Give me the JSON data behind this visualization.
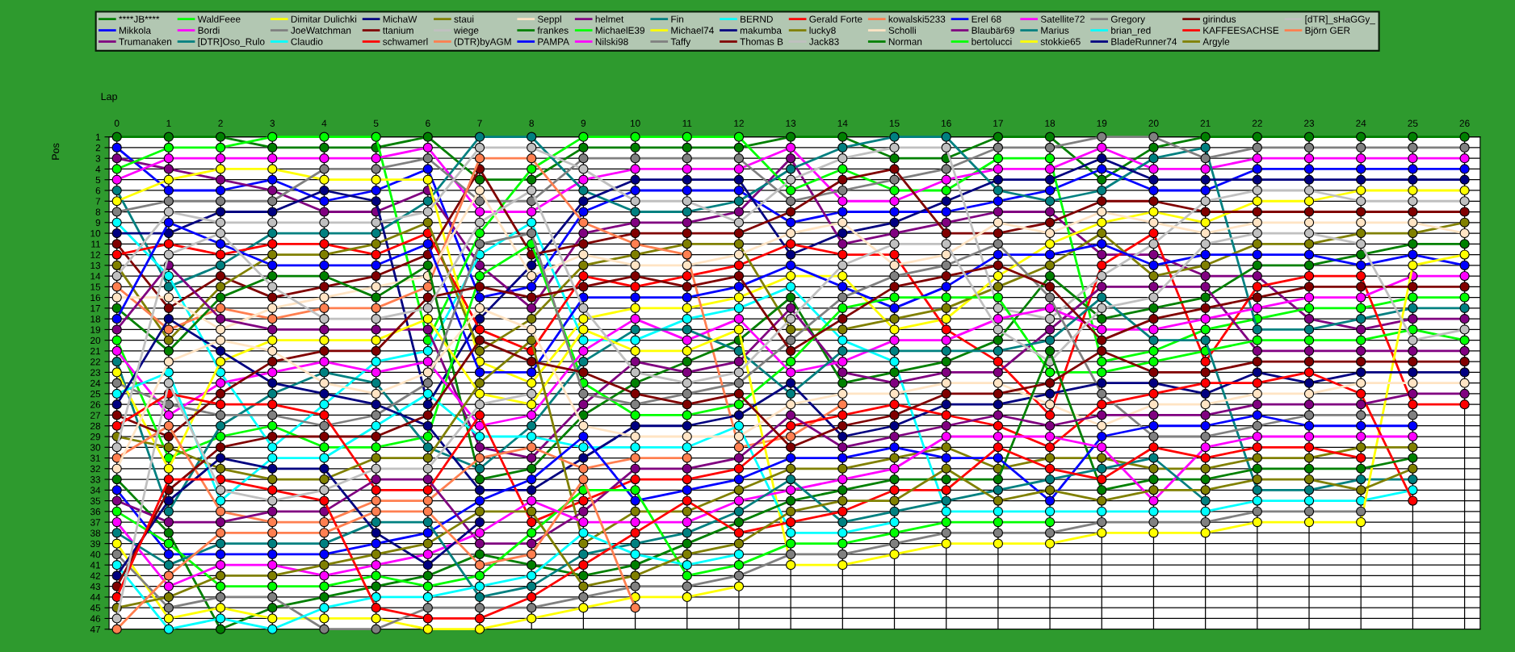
{
  "chart_data": {
    "type": "line",
    "xlabel": "Lap",
    "ylabel": "Pos",
    "categories": [
      "0",
      "1",
      "2",
      "3",
      "4",
      "5",
      "6",
      "7",
      "8",
      "9",
      "10",
      "11",
      "12",
      "13",
      "14",
      "15",
      "16",
      "17",
      "18",
      "19",
      "20",
      "21",
      "22",
      "23",
      "24",
      "25",
      "26"
    ],
    "ylim": [
      47,
      1
    ],
    "yticks": [
      1,
      2,
      3,
      4,
      5,
      6,
      7,
      8,
      9,
      10,
      11,
      12,
      13,
      14,
      15,
      16,
      17,
      18,
      19,
      20,
      21,
      22,
      23,
      24,
      25,
      26,
      27,
      28,
      29,
      30,
      31,
      32,
      33,
      34,
      35,
      36,
      37,
      38,
      39,
      40,
      41,
      42,
      43,
      44,
      45,
      46,
      47
    ],
    "grid": true,
    "legend": "top",
    "marker": "circle",
    "line_style": "solid",
    "series": [
      {
        "name": "****JB****",
        "color": "#008000",
        "values": [
          1,
          1,
          1,
          2,
          2,
          2,
          1,
          5,
          5,
          2,
          2,
          2,
          2,
          1,
          1,
          3,
          3,
          1,
          1,
          5,
          2,
          1,
          1,
          1,
          1,
          1,
          1
        ]
      },
      {
        "name": "Mikkola",
        "color": "#0000ff",
        "values": [
          2,
          6,
          6,
          5,
          7,
          6,
          4,
          16,
          15,
          8,
          6,
          6,
          6,
          9,
          8,
          8,
          8,
          7,
          6,
          4,
          6,
          6,
          4,
          4,
          4,
          4,
          4
        ]
      },
      {
        "name": "Trumanaken",
        "color": "#800080",
        "values": [
          3,
          4,
          5,
          6,
          8,
          8,
          6,
          13,
          17,
          10,
          9,
          9,
          8,
          3,
          11,
          10,
          9,
          8,
          8,
          12,
          12,
          14,
          14,
          18,
          19,
          18,
          18
        ]
      },
      {
        "name": "WaldFeee",
        "color": "#00ff00",
        "values": [
          4,
          2,
          2,
          1,
          1,
          1,
          20,
          10,
          4,
          1,
          1,
          1,
          1,
          6,
          4,
          6,
          6,
          3,
          3,
          22,
          21,
          19,
          18,
          17,
          17,
          16,
          16
        ]
      },
      {
        "name": "Bordi",
        "color": "#ff00ff",
        "values": [
          5,
          3,
          3,
          3,
          3,
          3,
          2,
          8,
          8,
          5,
          4,
          4,
          4,
          2,
          7,
          7,
          5,
          4,
          4,
          2,
          4,
          4,
          3,
          3,
          3,
          3,
          3
        ]
      },
      {
        "name": "[DTR]Oso_Rulo",
        "color": "#008080",
        "values": [
          6,
          15,
          13,
          10,
          10,
          10,
          7,
          1,
          1,
          6,
          8,
          8,
          7,
          4,
          2,
          1,
          1,
          6,
          7,
          6,
          3,
          2,
          19,
          19,
          18,
          17,
          17
        ]
      },
      {
        "name": "Dimitar Dulichki",
        "color": "#ffff00",
        "values": [
          7,
          5,
          4,
          4,
          5,
          5,
          5,
          22,
          24,
          18,
          17,
          17,
          16,
          14,
          14,
          19,
          18,
          14,
          11,
          9,
          8,
          9,
          7,
          7,
          6,
          6,
          6
        ]
      },
      {
        "name": "JoeWatchman",
        "color": "#808080",
        "values": [
          8,
          7,
          7,
          7,
          4,
          4,
          3,
          7,
          7,
          3,
          3,
          3,
          3,
          7,
          6,
          5,
          4,
          2,
          2,
          1,
          1,
          3,
          2,
          2,
          2,
          2,
          2
        ]
      },
      {
        "name": "Claudio",
        "color": "#00ffff",
        "values": [
          9,
          14,
          23,
          30,
          26,
          22,
          21,
          12,
          9,
          20,
          20,
          18,
          17,
          15,
          20,
          22,
          36,
          36,
          36,
          36,
          36,
          36,
          35,
          35,
          35,
          34,
          null
        ]
      },
      {
        "name": "MichaW",
        "color": "#000080",
        "values": [
          10,
          10,
          8,
          8,
          6,
          7,
          26,
          18,
          13,
          7,
          5,
          5,
          5,
          12,
          10,
          9,
          7,
          5,
          5,
          3,
          5,
          5,
          5,
          5,
          5,
          5,
          5
        ]
      },
      {
        "name": "ttanium",
        "color": "#800000",
        "values": [
          11,
          17,
          14,
          16,
          15,
          14,
          12,
          4,
          12,
          11,
          10,
          10,
          10,
          8,
          5,
          4,
          10,
          10,
          9,
          7,
          7,
          8,
          8,
          8,
          8,
          8,
          8
        ]
      },
      {
        "name": "schwamerl",
        "color": "#ff0000",
        "values": [
          12,
          11,
          12,
          11,
          11,
          12,
          10,
          19,
          21,
          14,
          15,
          14,
          13,
          11,
          12,
          12,
          19,
          22,
          27,
          13,
          10,
          22,
          15,
          14,
          14,
          26,
          26
        ]
      },
      {
        "name": "staui",
        "color": "#808000",
        "values": [
          13,
          20,
          15,
          12,
          12,
          11,
          9,
          21,
          18,
          13,
          12,
          11,
          11,
          19,
          19,
          18,
          17,
          15,
          13,
          10,
          14,
          13,
          11,
          11,
          10,
          10,
          9
        ]
      },
      {
        "name": "wiege",
        "color": "#c0c0c0",
        "values": [
          14,
          8,
          9,
          9,
          9,
          9,
          8,
          2,
          2,
          4,
          7,
          7,
          9,
          5,
          3,
          2,
          2,
          17,
          18,
          14,
          11,
          7,
          6,
          6,
          7,
          7,
          7
        ]
      },
      {
        "name": "(DTR)byAGM",
        "color": "#ff7f50",
        "values": [
          15,
          19,
          17,
          18,
          17,
          17,
          15,
          3,
          3,
          9,
          11,
          12,
          30,
          29,
          26,
          null,
          null,
          null,
          null,
          null,
          null,
          null,
          null,
          null,
          null,
          null,
          null
        ]
      },
      {
        "name": "Seppl",
        "color": "#ffe4c4",
        "values": [
          16,
          16,
          19,
          17,
          16,
          15,
          14,
          6,
          14,
          12,
          13,
          13,
          12,
          10,
          9,
          13,
          12,
          9,
          10,
          8,
          9,
          10,
          9,
          9,
          9,
          9,
          10
        ]
      },
      {
        "name": "frankes",
        "color": "#008000",
        "values": [
          17,
          21,
          16,
          14,
          14,
          16,
          13,
          33,
          32,
          27,
          24,
          22,
          20,
          16,
          24,
          23,
          22,
          20,
          14,
          18,
          17,
          16,
          13,
          13,
          12,
          11,
          11
        ]
      },
      {
        "name": "PAMPA",
        "color": "#0000ff",
        "values": [
          18,
          9,
          11,
          13,
          13,
          13,
          11,
          23,
          23,
          16,
          16,
          16,
          15,
          13,
          15,
          17,
          15,
          12,
          12,
          11,
          13,
          12,
          12,
          12,
          13,
          12,
          13
        ]
      },
      {
        "name": "helmet",
        "color": "#800080",
        "values": [
          19,
          13,
          18,
          19,
          19,
          19,
          19,
          30,
          31,
          26,
          22,
          23,
          22,
          17,
          23,
          24,
          23,
          23,
          19,
          15,
          15,
          15,
          21,
          21,
          21,
          21,
          21
        ]
      },
      {
        "name": "MichaelE39",
        "color": "#00ff00",
        "values": [
          20,
          31,
          29,
          28,
          30,
          30,
          29,
          14,
          11,
          24,
          27,
          27,
          26,
          22,
          17,
          16,
          16,
          16,
          23,
          23,
          22,
          21,
          20,
          20,
          20,
          19,
          20
        ]
      },
      {
        "name": "Nilski98",
        "color": "#ff00ff",
        "values": [
          21,
          27,
          24,
          23,
          22,
          23,
          22,
          28,
          27,
          21,
          18,
          20,
          18,
          23,
          22,
          20,
          20,
          18,
          17,
          19,
          19,
          18,
          17,
          16,
          16,
          14,
          14
        ]
      },
      {
        "name": "Fin",
        "color": "#008080",
        "values": [
          22,
          36,
          28,
          25,
          23,
          24,
          30,
          32,
          28,
          22,
          19,
          19,
          21,
          25,
          21,
          21,
          21,
          21,
          20,
          16,
          20,
          20,
          34,
          34,
          33,
          33,
          null
        ]
      },
      {
        "name": "Michael74",
        "color": "#ffff00",
        "values": [
          23,
          32,
          22,
          20,
          20,
          20,
          18,
          25,
          26,
          19,
          21,
          21,
          19,
          41,
          41,
          40,
          39,
          39,
          39,
          38,
          38,
          38,
          37,
          37,
          37,
          13,
          12
        ]
      },
      {
        "name": "Taffy",
        "color": "#808080",
        "values": [
          24,
          26,
          27,
          27,
          28,
          27,
          24,
          11,
          10,
          25,
          26,
          25,
          24,
          20,
          16,
          14,
          13,
          11,
          16,
          25,
          29,
          29,
          28,
          27,
          27,
          27,
          null
        ]
      },
      {
        "name": "BERND",
        "color": "#00ffff",
        "values": [
          25,
          23,
          35,
          31,
          31,
          28,
          25,
          29,
          29,
          30,
          30,
          30,
          28,
          38,
          38,
          37,
          null,
          null,
          null,
          null,
          null,
          null,
          null,
          null,
          null,
          null,
          null
        ]
      },
      {
        "name": "makumba",
        "color": "#000080",
        "values": [
          26,
          18,
          21,
          24,
          25,
          26,
          28,
          34,
          34,
          31,
          28,
          28,
          27,
          24,
          29,
          28,
          26,
          26,
          25,
          24,
          24,
          25,
          23,
          24,
          23,
          23,
          23
        ]
      },
      {
        "name": "Thomas B",
        "color": "#800000",
        "values": [
          27,
          29,
          25,
          22,
          21,
          21,
          16,
          15,
          16,
          15,
          14,
          15,
          14,
          21,
          18,
          15,
          14,
          13,
          15,
          20,
          18,
          17,
          16,
          15,
          15,
          15,
          15
        ]
      },
      {
        "name": "Gerald Forte",
        "color": "#ff0000",
        "values": [
          28,
          25,
          26,
          26,
          27,
          34,
          34,
          27,
          37,
          35,
          33,
          33,
          32,
          28,
          27,
          26,
          27,
          28,
          30,
          26,
          25,
          24,
          24,
          23,
          25,
          35,
          null
        ]
      },
      {
        "name": "lucky8",
        "color": "#808000",
        "values": [
          29,
          30,
          32,
          33,
          33,
          31,
          31,
          24,
          20,
          39,
          36,
          36,
          34,
          32,
          32,
          31,
          30,
          32,
          31,
          31,
          32,
          32,
          31,
          31,
          30,
          30,
          null
        ]
      },
      {
        "name": "Jack83",
        "color": "#c0c0c0",
        "values": [
          30,
          12,
          10,
          15,
          18,
          18,
          17,
          9,
          6,
          17,
          23,
          24,
          23,
          18,
          13,
          11,
          11,
          19,
          22,
          17,
          16,
          11,
          10,
          10,
          11,
          20,
          19
        ]
      },
      {
        "name": "kowalski5233",
        "color": "#ff7f50",
        "values": [
          31,
          28,
          36,
          37,
          37,
          35,
          35,
          31,
          30,
          32,
          31,
          31,
          null,
          null,
          null,
          null,
          null,
          null,
          null,
          null,
          null,
          null,
          null,
          null,
          null,
          null,
          null
        ]
      },
      {
        "name": "Scholli",
        "color": "#ffe4c4",
        "values": [
          32,
          22,
          20,
          21,
          24,
          25,
          23,
          17,
          19,
          28,
          29,
          29,
          29,
          26,
          25,
          25,
          24,
          24,
          26,
          28,
          26,
          26,
          25,
          25,
          24,
          24,
          24
        ]
      },
      {
        "name": "Norman",
        "color": "#008000",
        "values": [
          33,
          38,
          47,
          45,
          44,
          43,
          42,
          40,
          41,
          42,
          41,
          39,
          37,
          35,
          34,
          33,
          33,
          33,
          21,
          34,
          33,
          33,
          32,
          32,
          32,
          31,
          null
        ]
      },
      {
        "name": "Erel 68",
        "color": "#0000ff",
        "values": [
          34,
          40,
          40,
          40,
          40,
          39,
          38,
          35,
          33,
          29,
          35,
          34,
          33,
          31,
          31,
          30,
          31,
          31,
          35,
          29,
          28,
          28,
          27,
          28,
          28,
          28,
          null
        ]
      },
      {
        "name": "Blaubär69",
        "color": "#800080",
        "values": [
          35,
          37,
          37,
          36,
          36,
          33,
          33,
          39,
          39,
          36,
          32,
          32,
          31,
          27,
          30,
          29,
          28,
          27,
          28,
          27,
          27,
          27,
          26,
          26,
          26,
          25,
          25
        ]
      },
      {
        "name": "bertolucci",
        "color": "#00ff00",
        "values": [
          36,
          39,
          43,
          43,
          43,
          42,
          43,
          42,
          38,
          34,
          34,
          42,
          41,
          39,
          39,
          38,
          37,
          37,
          37,
          null,
          null,
          null,
          null,
          null,
          null,
          null,
          null
        ]
      },
      {
        "name": "Satellite72",
        "color": "#ff00ff",
        "values": [
          37,
          43,
          41,
          41,
          42,
          41,
          40,
          38,
          35,
          37,
          37,
          37,
          35,
          34,
          33,
          32,
          29,
          29,
          29,
          30,
          35,
          30,
          29,
          29,
          29,
          29,
          null
        ]
      },
      {
        "name": "Marius",
        "color": "#008080",
        "values": [
          38,
          41,
          39,
          39,
          39,
          37,
          37,
          44,
          43,
          40,
          39,
          38,
          36,
          33,
          37,
          36,
          35,
          34,
          33,
          32,
          31,
          35,
          null,
          null,
          null,
          null,
          null
        ]
      },
      {
        "name": "stokkie65",
        "color": "#ffff00",
        "values": [
          39,
          46,
          45,
          46,
          46,
          46,
          47,
          47,
          46,
          45,
          44,
          44,
          43,
          null,
          null,
          null,
          null,
          null,
          null,
          null,
          null,
          null,
          null,
          null,
          null,
          null,
          null
        ]
      },
      {
        "name": "Gregory",
        "color": "#808080",
        "values": [
          40,
          45,
          44,
          44,
          47,
          47,
          45,
          45,
          45,
          44,
          43,
          43,
          42,
          40,
          40,
          39,
          38,
          38,
          38,
          37,
          37,
          37,
          36,
          36,
          36,
          null,
          null
        ]
      },
      {
        "name": "brian_red",
        "color": "#00ffff",
        "values": [
          41,
          47,
          46,
          47,
          45,
          44,
          44,
          43,
          42,
          38,
          40,
          41,
          40,
          null,
          null,
          null,
          null,
          null,
          null,
          null,
          null,
          null,
          null,
          null,
          null,
          null,
          null
        ]
      },
      {
        "name": "BladeRunner74",
        "color": "#000080",
        "values": [
          42,
          35,
          31,
          32,
          32,
          38,
          41,
          37,
          null,
          null,
          null,
          null,
          null,
          null,
          null,
          null,
          null,
          null,
          null,
          null,
          null,
          null,
          null,
          null,
          null,
          null,
          null
        ]
      },
      {
        "name": "girindus",
        "color": "#800000",
        "values": [
          43,
          34,
          30,
          29,
          29,
          29,
          27,
          20,
          22,
          23,
          25,
          26,
          25,
          30,
          28,
          27,
          25,
          25,
          24,
          21,
          23,
          23,
          22,
          22,
          22,
          22,
          22
        ]
      },
      {
        "name": "KAFFEESACHSE",
        "color": "#ff0000",
        "values": [
          44,
          33,
          33,
          34,
          35,
          45,
          46,
          46,
          44,
          41,
          38,
          35,
          38,
          37,
          36,
          34,
          34,
          30,
          32,
          33,
          30,
          31,
          30,
          30,
          31,
          null,
          null
        ]
      },
      {
        "name": "Argyle",
        "color": "#808000",
        "values": [
          45,
          44,
          42,
          42,
          41,
          40,
          39,
          36,
          36,
          43,
          42,
          40,
          39,
          36,
          35,
          35,
          32,
          35,
          34,
          35,
          34,
          34,
          33,
          33,
          34,
          32,
          null
        ]
      },
      {
        "name": "[dTR]_sHaGGy_",
        "color": "#c0c0c0",
        "values": [
          46,
          24,
          34,
          35,
          34,
          32,
          32,
          26,
          25,
          null,
          null,
          null,
          null,
          null,
          null,
          null,
          null,
          null,
          null,
          null,
          null,
          null,
          null,
          null,
          null,
          null,
          null
        ]
      },
      {
        "name": "Björn GER",
        "color": "#ff7f50",
        "values": [
          47,
          42,
          38,
          38,
          38,
          36,
          36,
          41,
          40,
          33,
          45,
          null,
          null,
          null,
          null,
          null,
          null,
          null,
          null,
          null,
          null,
          null,
          null,
          null,
          null,
          null,
          null
        ]
      }
    ]
  }
}
